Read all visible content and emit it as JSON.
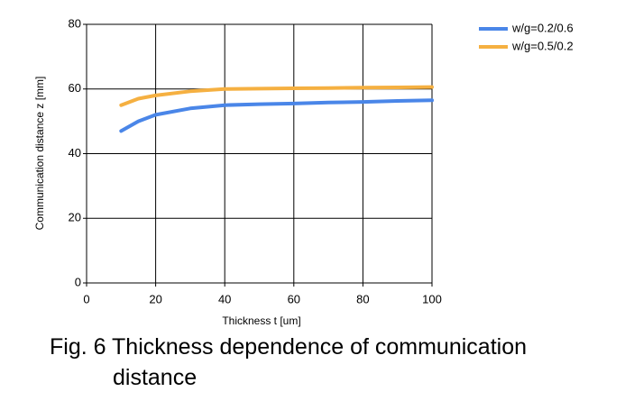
{
  "chart_data": {
    "type": "line",
    "x_label": "Thickness t [um]",
    "y_label": "Communication distance z [mm]",
    "caption": "Fig. 6 Thickness dependence of communication distance",
    "x": [
      10,
      15,
      20,
      30,
      40,
      50,
      60,
      70,
      80,
      90,
      100
    ],
    "series": [
      {
        "name": "w/g=0.2/0.6",
        "color": "#4a86e8",
        "values": [
          47,
          50,
          52,
          54,
          55,
          55.3,
          55.5,
          55.8,
          56,
          56.3,
          56.5
        ]
      },
      {
        "name": "w/g=0.5/0.2",
        "color": "#f5b041",
        "values": [
          55,
          57,
          58,
          59.3,
          60,
          60.1,
          60.2,
          60.3,
          60.4,
          60.5,
          60.6
        ]
      }
    ],
    "xlim": [
      0,
      100
    ],
    "xticks": [
      0,
      20,
      40,
      60,
      80,
      100
    ],
    "ylim": [
      0,
      80
    ],
    "yticks": [
      0,
      20,
      40,
      60,
      80
    ],
    "grid": true,
    "legend": "top-right"
  }
}
